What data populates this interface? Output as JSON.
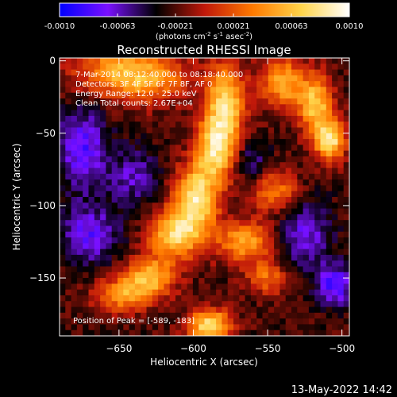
{
  "chart_data": {
    "type": "heatmap",
    "title": "Reconstructed RHESSI Image",
    "colorbar": {
      "min": -0.001,
      "max": 0.001,
      "ticks": [
        "-0.0010",
        "-0.00063",
        "-0.00021",
        "0.00021",
        "0.00063",
        "0.0010"
      ],
      "unit_base": "(photons cm",
      "unit_sup1": "-2",
      "unit_mid": " s",
      "unit_sup2": "-1",
      "unit_mid2": " asec",
      "unit_sup3": "-2",
      "unit_end": ")",
      "colors": [
        "#0000ff",
        "#7a10ff",
        "#000000",
        "#c0180a",
        "#ff7a00",
        "#ffd44a",
        "#ffffff"
      ]
    },
    "xlabel": "Heliocentric X (arcsec)",
    "ylabel": "Heliocentric Y (arcsec)",
    "xlim": [
      -690,
      -495
    ],
    "ylim": [
      -190,
      2
    ],
    "xticks": [
      -650,
      -600,
      -550,
      -500
    ],
    "xtick_labels": [
      "−650",
      "−600",
      "−550",
      "−500"
    ],
    "yticks": [
      0,
      -50,
      -100,
      -150
    ],
    "ytick_labels": [
      "0",
      "−50",
      "−100",
      "−150"
    ],
    "annotations": [
      " 7-Mar-2014 08:12:40.000 to 08:18:40.000",
      "Detectors: 3F 4F 5F 6F 7F 8F, AF 0",
      "Energy Range: 12.0 - 25.0 keV",
      "Clean     Total counts: 2.67E+04"
    ],
    "peak_label": "Position of Peak = [-589, -183]",
    "peak": {
      "x": -589,
      "y": -183
    },
    "features": [
      {
        "x": -655,
        "y": -5,
        "sx": 22,
        "sy": 14,
        "v": 0.5
      },
      {
        "x": -630,
        "y": -12,
        "sx": 20,
        "sy": 12,
        "v": 0.55
      },
      {
        "x": -578,
        "y": -28,
        "sx": 9,
        "sy": 18,
        "v": 0.9
      },
      {
        "x": -585,
        "y": -60,
        "sx": 9,
        "sy": 16,
        "v": 0.95
      },
      {
        "x": -598,
        "y": -95,
        "sx": 10,
        "sy": 16,
        "v": 1.0
      },
      {
        "x": -612,
        "y": -120,
        "sx": 12,
        "sy": 12,
        "v": 0.9
      },
      {
        "x": -630,
        "y": -150,
        "sx": 12,
        "sy": 10,
        "v": 0.8
      },
      {
        "x": -650,
        "y": -162,
        "sx": 12,
        "sy": 8,
        "v": 0.6
      },
      {
        "x": -589,
        "y": -183,
        "sx": 10,
        "sy": 8,
        "v": 1.0
      },
      {
        "x": -540,
        "y": -15,
        "sx": 10,
        "sy": 12,
        "v": 0.75
      },
      {
        "x": -518,
        "y": -30,
        "sx": 8,
        "sy": 14,
        "v": 0.85
      },
      {
        "x": -508,
        "y": -55,
        "sx": 7,
        "sy": 10,
        "v": 1.0
      },
      {
        "x": -545,
        "y": -90,
        "sx": 12,
        "sy": 10,
        "v": 0.55
      },
      {
        "x": -565,
        "y": -125,
        "sx": 14,
        "sy": 10,
        "v": 0.7
      },
      {
        "x": -550,
        "y": -150,
        "sx": 10,
        "sy": 8,
        "v": 0.5
      },
      {
        "x": -675,
        "y": -60,
        "sx": 12,
        "sy": 20,
        "v": -0.55
      },
      {
        "x": -670,
        "y": -120,
        "sx": 14,
        "sy": 14,
        "v": -0.5
      },
      {
        "x": -640,
        "y": -80,
        "sx": 12,
        "sy": 14,
        "v": -0.35
      },
      {
        "x": -525,
        "y": -120,
        "sx": 12,
        "sy": 18,
        "v": -0.45
      },
      {
        "x": -505,
        "y": -155,
        "sx": 8,
        "sy": 10,
        "v": -0.6
      },
      {
        "x": -560,
        "y": -70,
        "sx": 8,
        "sy": 10,
        "v": -0.3
      }
    ]
  },
  "footer": {
    "timestamp": "13-May-2022 14:42"
  }
}
